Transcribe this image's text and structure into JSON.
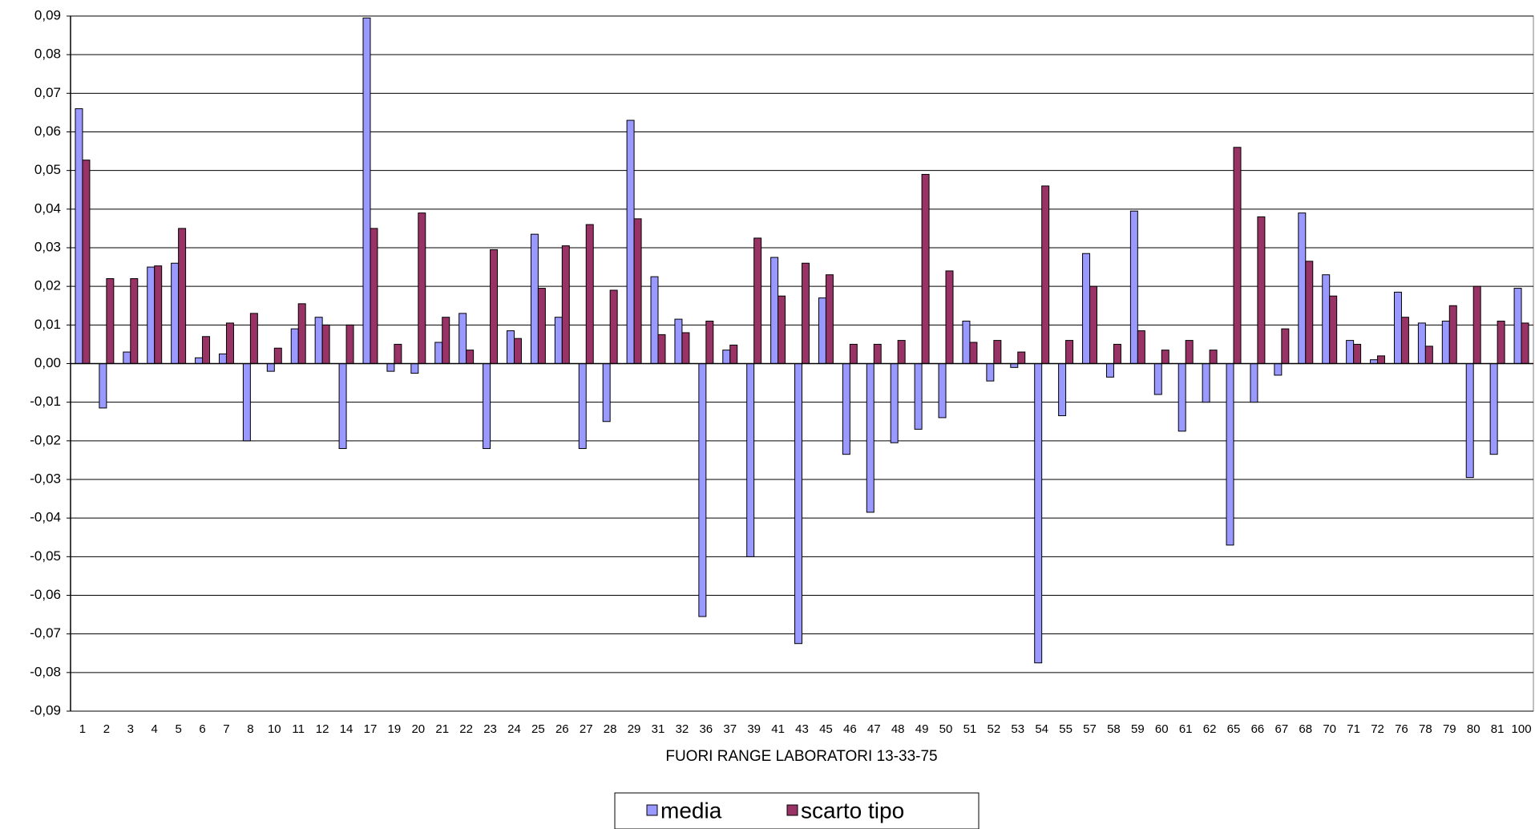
{
  "chart_data": {
    "type": "bar",
    "x_label": "FUORI RANGE LABORATORI 13-33-75",
    "categories": [
      "1",
      "2",
      "3",
      "4",
      "5",
      "6",
      "7",
      "8",
      "10",
      "11",
      "12",
      "14",
      "17",
      "19",
      "20",
      "21",
      "22",
      "23",
      "24",
      "25",
      "26",
      "27",
      "28",
      "29",
      "31",
      "32",
      "36",
      "37",
      "39",
      "41",
      "43",
      "45",
      "46",
      "47",
      "48",
      "49",
      "50",
      "51",
      "52",
      "53",
      "54",
      "55",
      "57",
      "58",
      "59",
      "60",
      "61",
      "62",
      "65",
      "66",
      "67",
      "68",
      "70",
      "71",
      "72",
      "76",
      "78",
      "79",
      "80",
      "81",
      "100"
    ],
    "series": [
      {
        "name": "media",
        "color": "#9999ff",
        "values": [
          0.066,
          -0.0115,
          0.003,
          0.025,
          0.026,
          0.0015,
          0.0025,
          -0.02,
          -0.002,
          0.009,
          0.012,
          -0.022,
          0.0895,
          -0.002,
          -0.0025,
          0.0055,
          0.013,
          -0.022,
          0.0085,
          0.0335,
          0.012,
          -0.022,
          -0.015,
          0.063,
          0.0225,
          0.0115,
          -0.0655,
          0.0035,
          -0.05,
          0.0275,
          -0.0725,
          0.017,
          -0.0235,
          -0.0385,
          -0.0205,
          -0.017,
          -0.014,
          0.011,
          -0.0045,
          -0.001,
          -0.0775,
          -0.0135,
          0.0285,
          -0.0035,
          0.0395,
          -0.008,
          -0.0175,
          -0.01,
          -0.047,
          -0.01,
          -0.003,
          0.039,
          0.023,
          0.006,
          0.001,
          0.0185,
          0.0105,
          0.011,
          -0.0295,
          -0.0235,
          0.0195
        ]
      },
      {
        "name": "scarto tipo",
        "color": "#993366",
        "values": [
          0.0527,
          0.022,
          0.022,
          0.0253,
          0.035,
          0.007,
          0.0105,
          0.013,
          0.004,
          0.0155,
          0.01,
          0.01,
          0.035,
          0.005,
          0.039,
          0.012,
          0.0035,
          0.0295,
          0.0065,
          0.0195,
          0.0305,
          0.036,
          0.019,
          0.0375,
          0.0075,
          0.008,
          0.011,
          0.0048,
          0.0325,
          0.0175,
          0.026,
          0.023,
          0.005,
          0.005,
          0.006,
          0.049,
          0.024,
          0.0055,
          0.006,
          0.003,
          0.046,
          0.006,
          0.02,
          0.005,
          0.0085,
          0.0035,
          0.006,
          0.0035,
          0.056,
          0.038,
          0.009,
          0.0265,
          0.0175,
          0.005,
          0.002,
          0.012,
          0.0045,
          0.015,
          0.02,
          0.011,
          0.0105
        ]
      }
    ],
    "ylim": [
      -0.09,
      0.09
    ],
    "yticks": [
      {
        "value": -0.09,
        "label": "-0,09"
      },
      {
        "value": -0.08,
        "label": "-0,08"
      },
      {
        "value": -0.07,
        "label": "-0,07"
      },
      {
        "value": -0.06,
        "label": "-0,06"
      },
      {
        "value": -0.05,
        "label": "-0,05"
      },
      {
        "value": -0.04,
        "label": "-0,04"
      },
      {
        "value": -0.03,
        "label": "-0,03"
      },
      {
        "value": -0.02,
        "label": "-0,02"
      },
      {
        "value": -0.01,
        "label": "-0,01"
      },
      {
        "value": 0,
        "label": "0,00"
      },
      {
        "value": 0.01,
        "label": "0,01"
      },
      {
        "value": 0.02,
        "label": "0,02"
      },
      {
        "value": 0.03,
        "label": "0,03"
      },
      {
        "value": 0.04,
        "label": "0,04"
      },
      {
        "value": 0.05,
        "label": "0,05"
      },
      {
        "value": 0.06,
        "label": "0,06"
      },
      {
        "value": 0.07,
        "label": "0,07"
      },
      {
        "value": 0.08,
        "label": "0,08"
      },
      {
        "value": 0.09,
        "label": "0,09"
      }
    ],
    "grid": true,
    "legend": "bottom"
  }
}
